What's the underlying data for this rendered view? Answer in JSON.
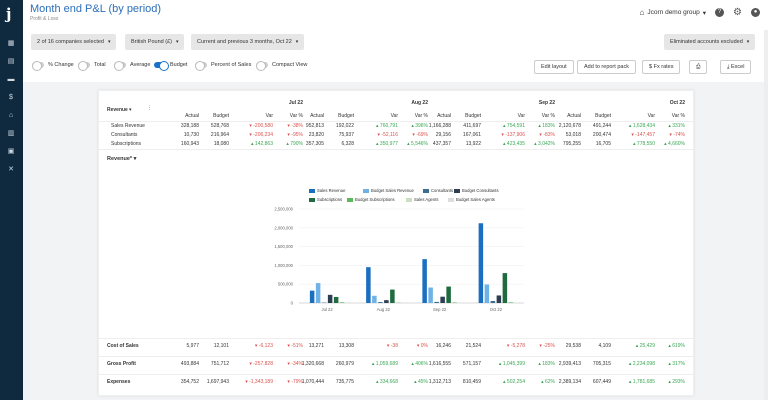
{
  "app": {
    "title": "Month end P&L (by period)",
    "subtitle": "Profit & Loss",
    "logo": "j"
  },
  "header": {
    "group": "Jcorn demo group",
    "icons": [
      "building-icon",
      "help-icon",
      "settings-icon",
      "user-icon"
    ]
  },
  "sidebar": {
    "items": [
      "dashboard-icon",
      "reports-icon",
      "folder-icon",
      "dollar-icon",
      "bank-icon",
      "chart-icon",
      "database-icon",
      "tools-icon"
    ]
  },
  "filters": {
    "companies": "2 of 16 companies selected",
    "currency": "British Pound (£)",
    "period": "Current and previous 3 months, Oct 22",
    "eliminated": "Eliminated accounts excluded"
  },
  "toggles": [
    {
      "label": "% Change",
      "on": false
    },
    {
      "label": "Total",
      "on": false
    },
    {
      "label": "Average",
      "on": false
    },
    {
      "label": "Budget",
      "on": true
    },
    {
      "label": "Percent of Sales",
      "on": false
    },
    {
      "label": "Compact View",
      "on": false
    }
  ],
  "buttons": {
    "edit_layout": "Edit layout",
    "add_report": "Add to report pack",
    "fx_rates": "Fx rates",
    "print": "⎙",
    "excel": "Excel"
  },
  "table": {
    "section_label": "Revenue",
    "periods": [
      "Jul 22",
      "Aug 22",
      "Sep 22",
      "Oct 22"
    ],
    "col_headers": [
      "Actual",
      "Budget",
      "Var",
      "Var %"
    ],
    "rows": [
      {
        "label": "Sales Revenue",
        "cells": [
          [
            "328,188",
            "528,768",
            "▾ -200,580",
            "▾ -38%"
          ],
          [
            "952,813",
            "192,022",
            "▴ 760,791",
            "▴ 396%"
          ],
          [
            "1,166,288",
            "411,697",
            "▴ 754,591",
            "▴ 183%"
          ],
          [
            "2,120,678",
            "491,244",
            "▴ 1,628,434",
            "▴ 331%"
          ]
        ]
      },
      {
        "label": "Consultants",
        "cells": [
          [
            "10,730",
            "216,964",
            "▾ -206,234",
            "▾ -95%"
          ],
          [
            "23,820",
            "75,937",
            "▾ -52,116",
            "▾ -69%"
          ],
          [
            "29,156",
            "167,061",
            "▾ -137,906",
            "▾ -83%"
          ],
          [
            "53,018",
            "200,474",
            "▾ -147,457",
            "▾ -74%"
          ]
        ]
      },
      {
        "label": "Subscriptions",
        "cells": [
          [
            "160,943",
            "18,080",
            "▴ 142,863",
            "▴ 790%"
          ],
          [
            "357,305",
            "6,328",
            "▴ 350,977",
            "▴ 5,546%"
          ],
          [
            "437,357",
            "13,922",
            "▴ 423,435",
            "▴ 3,042%"
          ],
          [
            "795,255",
            "16,705",
            "▴ 778,550",
            "▴ 4,660%"
          ]
        ]
      }
    ],
    "summary_rows": [
      {
        "label": "Cost of Sales",
        "cells": [
          [
            "5,977",
            "12,101",
            "▾ -6,123",
            "▾ -51%"
          ],
          [
            "13,271",
            "13,308",
            "▾ -38",
            "▾ 0%"
          ],
          [
            "16,246",
            "21,524",
            "▾ -5,278",
            "▾ -25%"
          ],
          [
            "29,538",
            "4,109",
            "▴ 25,429",
            "▴ 619%"
          ]
        ]
      },
      {
        "label": "Gross Profit",
        "cells": [
          [
            "493,884",
            "751,712",
            "▾ -257,828",
            "▾ -34%"
          ],
          [
            "1,320,668",
            "260,979",
            "▴ 1,059,689",
            "▴ 406%"
          ],
          [
            "1,616,555",
            "571,157",
            "▴ 1,045,399",
            "▴ 183%"
          ],
          [
            "2,939,413",
            "705,315",
            "▴ 2,234,098",
            "▴ 317%"
          ]
        ]
      },
      {
        "label": "Expenses",
        "cells": [
          [
            "354,752",
            "1,697,943",
            "▾ -1,343,189",
            "▾ -79%"
          ],
          [
            "1,070,444",
            "735,775",
            "▴ 334,668",
            "▴ 45%"
          ],
          [
            "1,312,713",
            "810,459",
            "▴ 502,254",
            "▴ 62%"
          ],
          [
            "2,389,134",
            "607,449",
            "▴ 1,781,685",
            "▴ 293%"
          ]
        ]
      }
    ]
  },
  "chart_label": "Revenue*",
  "chart_data": {
    "type": "bar",
    "categories": [
      "Jul 22",
      "Aug 22",
      "Sep 22",
      "Oct 22"
    ],
    "ylim": [
      0,
      2500000
    ],
    "yticks": [
      "2,500,000",
      "2,000,000",
      "1,500,000",
      "1,000,000",
      "500,000",
      "0"
    ],
    "series": [
      {
        "name": "Sales Revenue",
        "color": "#1b6fc0",
        "values": [
          328188,
          952813,
          1166288,
          2120678
        ]
      },
      {
        "name": "Budget Sales Revenue",
        "color": "#6fb2e6",
        "values": [
          528768,
          192022,
          411697,
          491244
        ]
      },
      {
        "name": "Consultants",
        "color": "#3c6e8f",
        "values": [
          10730,
          23820,
          29156,
          53018
        ]
      },
      {
        "name": "Budget Consultants",
        "color": "#2c3e50",
        "values": [
          216964,
          75937,
          167061,
          200474
        ]
      },
      {
        "name": "Subscriptions",
        "color": "#1f6b3f",
        "values": [
          160943,
          357305,
          437357,
          795255
        ]
      },
      {
        "name": "Budget Subscriptions",
        "color": "#5cb85c",
        "values": [
          18080,
          6328,
          13922,
          16705
        ]
      },
      {
        "name": "Sales Agents",
        "color": "#c8dfc4",
        "values": [
          0,
          0,
          0,
          0
        ]
      },
      {
        "name": "Budget Sales Agents",
        "color": "#dddddd",
        "values": [
          0,
          0,
          0,
          0
        ]
      }
    ]
  }
}
